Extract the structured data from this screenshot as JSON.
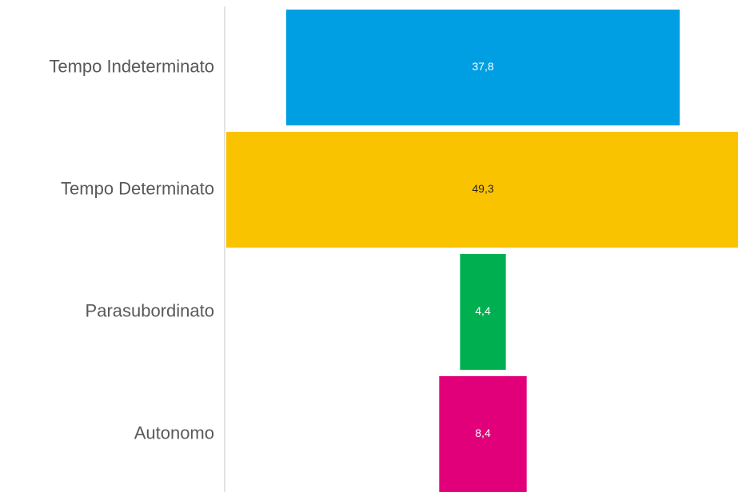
{
  "chart_data": {
    "type": "funnel",
    "categories": [
      "Tempo Indeterminato",
      "Tempo Determinato",
      "Parasubordinato",
      "Autonomo"
    ],
    "values": [
      37.8,
      49.3,
      4.4,
      8.4
    ],
    "value_labels": [
      "37,8",
      "49,3",
      "4,4",
      "8,4"
    ],
    "colors": [
      "#009fe3",
      "#f9c300",
      "#00b050",
      "#e2007a"
    ]
  }
}
